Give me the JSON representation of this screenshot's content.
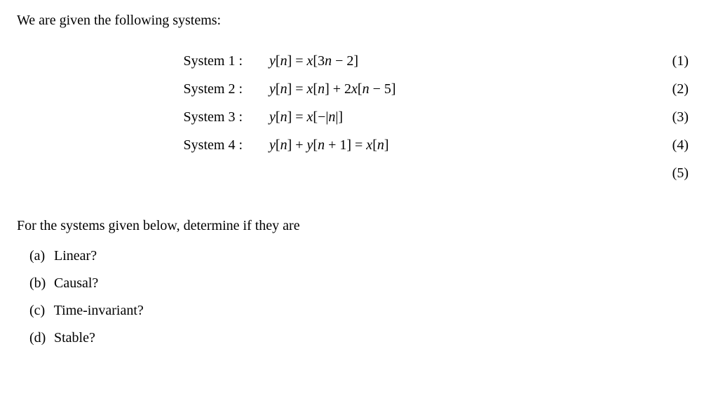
{
  "intro": "We are given the following systems:",
  "systems": [
    {
      "label": "System 1 :",
      "eq_html": "<span>y</span><span class='upright'>[</span>n<span class='upright'>]</span> <span class='upright'>=</span> x<span class='upright'>[3</span>n <span class='upright'>&minus; 2]</span>",
      "num": "(1)"
    },
    {
      "label": "System 2 :",
      "eq_html": "<span>y</span><span class='upright'>[</span>n<span class='upright'>]</span> <span class='upright'>=</span> x<span class='upright'>[</span>n<span class='upright'>]</span> <span class='upright'>+ 2</span>x<span class='upright'>[</span>n <span class='upright'>&minus; 5]</span>",
      "num": "(2)"
    },
    {
      "label": "System 3 :",
      "eq_html": "<span>y</span><span class='upright'>[</span>n<span class='upright'>]</span> <span class='upright'>=</span> x<span class='upright'>[&minus;|</span>n<span class='upright'>|]</span>",
      "num": "(3)"
    },
    {
      "label": "System 4 :",
      "eq_html": "<span>y</span><span class='upright'>[</span>n<span class='upright'>]</span> <span class='upright'>+</span> y<span class='upright'>[</span>n <span class='upright'>+ 1] =</span> x<span class='upright'>[</span>n<span class='upright'>]</span>",
      "num": "(4)"
    },
    {
      "label": "",
      "eq_html": "",
      "num": "(5)"
    }
  ],
  "prompt2": "For the systems given below, determine if they are",
  "questions": [
    {
      "marker": "(a)",
      "text": "Linear?"
    },
    {
      "marker": "(b)",
      "text": "Causal?"
    },
    {
      "marker": "(c)",
      "text": "Time-invariant?"
    },
    {
      "marker": "(d)",
      "text": "Stable?"
    }
  ],
  "colors": {
    "text": "#000000",
    "background": "#ffffff"
  },
  "typography": {
    "font_family": "Times New Roman",
    "base_size_pt": 15
  }
}
